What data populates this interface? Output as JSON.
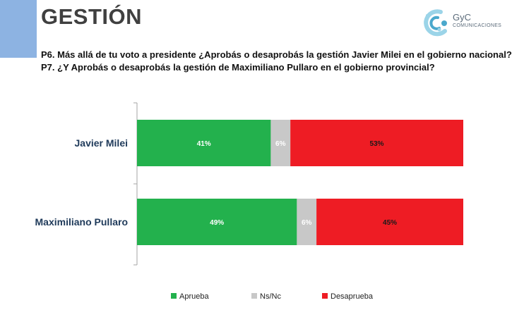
{
  "header": {
    "title": "GESTIÓN",
    "logo_main": "GyC",
    "logo_sub": "COMUNICACIONES"
  },
  "questions": [
    "P6. Más allá de tu voto a presidente ¿Aprobás o desaprobás la gestión Javier Milei en el gobierno nacional?",
    "P7. ¿Y Aprobás o desaprobás la gestión de Maximiliano Pullaro en el gobierno provincial?"
  ],
  "chart_data": {
    "type": "bar",
    "orientation": "horizontal",
    "stacked": true,
    "percent_stacked": true,
    "categories": [
      "Javier Milei",
      "Maximiliano Pullaro"
    ],
    "series": [
      {
        "name": "Aprueba",
        "values": [
          41,
          49
        ],
        "labels": [
          "41%",
          "49%"
        ],
        "color": "#23b14d",
        "label_color": "#ffffff"
      },
      {
        "name": "Ns/Nc",
        "values": [
          6,
          6
        ],
        "labels": [
          "6%",
          "6%"
        ],
        "color": "#c8c8c8",
        "label_color": "#ffffff"
      },
      {
        "name": "Desaprueba",
        "values": [
          53,
          45
        ],
        "labels": [
          "53%",
          "45%"
        ],
        "color": "#ee1c24",
        "label_color": "#1a1a1a"
      }
    ],
    "xlim": [
      0,
      100
    ],
    "grid": false,
    "legend_position": "bottom"
  },
  "colors": {
    "accent": "#8db3e2",
    "category_label": "#1f3a5a",
    "axis": "#a6a6a6"
  }
}
